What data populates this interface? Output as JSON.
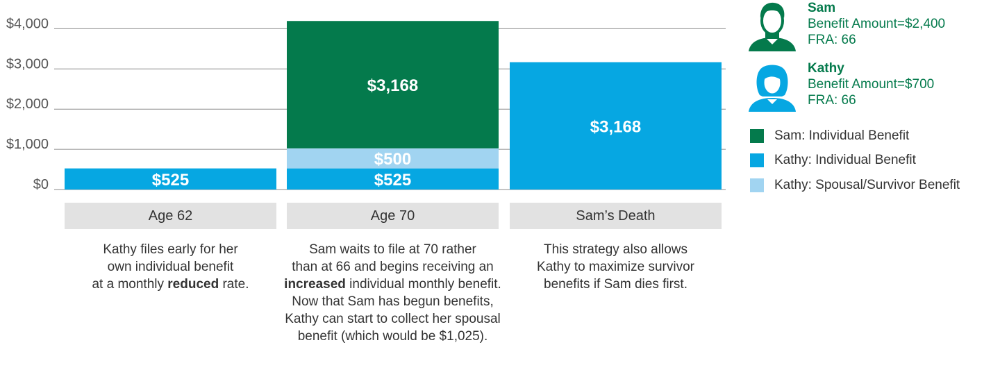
{
  "chart_data": {
    "type": "bar",
    "stacked": true,
    "categories": [
      "Age 62",
      "Age 70",
      "Sam’s Death"
    ],
    "y_ticks": [
      "$0",
      "$1,000",
      "$2,000",
      "$3,000",
      "$4,000"
    ],
    "ylim": [
      0,
      4400
    ],
    "grid": true,
    "series": [
      {
        "name": "Kathy: Individual Benefit",
        "color": "#06a7e2",
        "values": [
          525,
          525,
          3168
        ],
        "labels": [
          "$525",
          "$525",
          "$3,168"
        ]
      },
      {
        "name": "Kathy: Spousal/Survivor Benefit",
        "color": "#a1d4f1",
        "values": [
          0,
          500,
          0
        ],
        "labels": [
          "",
          "$500",
          ""
        ]
      },
      {
        "name": "Sam: Individual Benefit",
        "color": "#047a4c",
        "values": [
          0,
          3168,
          0
        ],
        "labels": [
          "",
          "$3,168",
          ""
        ]
      }
    ]
  },
  "descriptions": [
    {
      "parts": [
        {
          "t": "Kathy files early for her",
          "b": false
        },
        {
          "br": true
        },
        {
          "t": "own individual benefit",
          "b": false
        },
        {
          "br": true
        },
        {
          "t": "at a monthly ",
          "b": false
        },
        {
          "t": "reduced",
          "b": true
        },
        {
          "t": " rate.",
          "b": false
        }
      ]
    },
    {
      "parts": [
        {
          "t": "Sam waits to file at 70 rather",
          "b": false
        },
        {
          "br": true
        },
        {
          "t": "than at 66 and begins receiving an",
          "b": false
        },
        {
          "br": true
        },
        {
          "t": "increased",
          "b": true
        },
        {
          "t": " individual monthly benefit.",
          "b": false
        },
        {
          "br": true
        },
        {
          "t": "Now that Sam has begun benefits,",
          "b": false
        },
        {
          "br": true
        },
        {
          "t": "Kathy can start to collect her spousal",
          "b": false
        },
        {
          "br": true
        },
        {
          "t": "benefit (which would be $1,025).",
          "b": false
        }
      ]
    },
    {
      "parts": [
        {
          "t": "This strategy also allows",
          "b": false
        },
        {
          "br": true
        },
        {
          "t": "Kathy to maximize survivor",
          "b": false
        },
        {
          "br": true
        },
        {
          "t": "benefits if Sam dies first.",
          "b": false
        }
      ]
    }
  ],
  "people": [
    {
      "name": "Sam",
      "benefit": "Benefit Amount=$2,400",
      "fra": "FRA: 66",
      "color": "#047a4c",
      "icon": "male-avatar-icon"
    },
    {
      "name": "Kathy",
      "benefit": "Benefit Amount=$700",
      "fra": "FRA: 66",
      "color": "#06a7e2",
      "icon": "female-avatar-icon"
    }
  ],
  "legend": [
    {
      "label": "Sam: Individual Benefit",
      "color": "#047a4c"
    },
    {
      "label": "Kathy: Individual Benefit",
      "color": "#06a7e2"
    },
    {
      "label": "Kathy: Spousal/Survivor Benefit",
      "color": "#a1d4f1"
    }
  ]
}
